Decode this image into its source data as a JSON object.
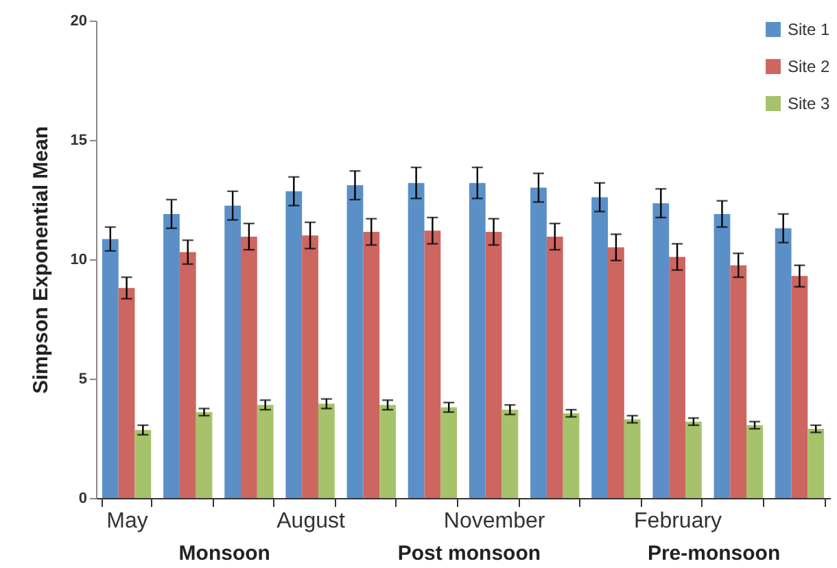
{
  "chart_data": {
    "type": "bar",
    "ylabel": "Simpson Exponential Mean",
    "categories": [
      "May",
      null,
      null,
      "August",
      null,
      null,
      "November",
      null,
      null,
      "February",
      null,
      null
    ],
    "series": [
      {
        "name": "Site 1",
        "color": "#5b8fc7",
        "values": [
          10.85,
          11.9,
          12.25,
          12.85,
          13.1,
          13.2,
          13.2,
          13.0,
          12.6,
          12.35,
          11.9,
          11.3
        ],
        "errors": [
          0.5,
          0.6,
          0.6,
          0.6,
          0.6,
          0.65,
          0.65,
          0.6,
          0.6,
          0.6,
          0.55,
          0.6
        ]
      },
      {
        "name": "Site 2",
        "color": "#cd6560",
        "values": [
          8.8,
          10.3,
          10.95,
          11.0,
          11.15,
          11.2,
          11.15,
          10.95,
          10.5,
          10.1,
          9.75,
          9.3
        ],
        "errors": [
          0.45,
          0.5,
          0.55,
          0.55,
          0.55,
          0.55,
          0.55,
          0.55,
          0.55,
          0.55,
          0.5,
          0.45
        ]
      },
      {
        "name": "Site 3",
        "color": "#a6c26a",
        "values": [
          2.85,
          3.6,
          3.9,
          3.95,
          3.9,
          3.8,
          3.7,
          3.55,
          3.3,
          3.2,
          3.05,
          2.9
        ],
        "errors": [
          0.2,
          0.15,
          0.2,
          0.2,
          0.2,
          0.2,
          0.2,
          0.15,
          0.15,
          0.15,
          0.15,
          0.15
        ]
      }
    ],
    "ylim": [
      0,
      20
    ],
    "yticks": [
      0,
      5,
      10,
      15,
      20
    ],
    "grid": false,
    "legend": "top right",
    "annotations": [
      "Monsoon",
      "Post monsoon",
      "Pre-monsoon"
    ]
  }
}
